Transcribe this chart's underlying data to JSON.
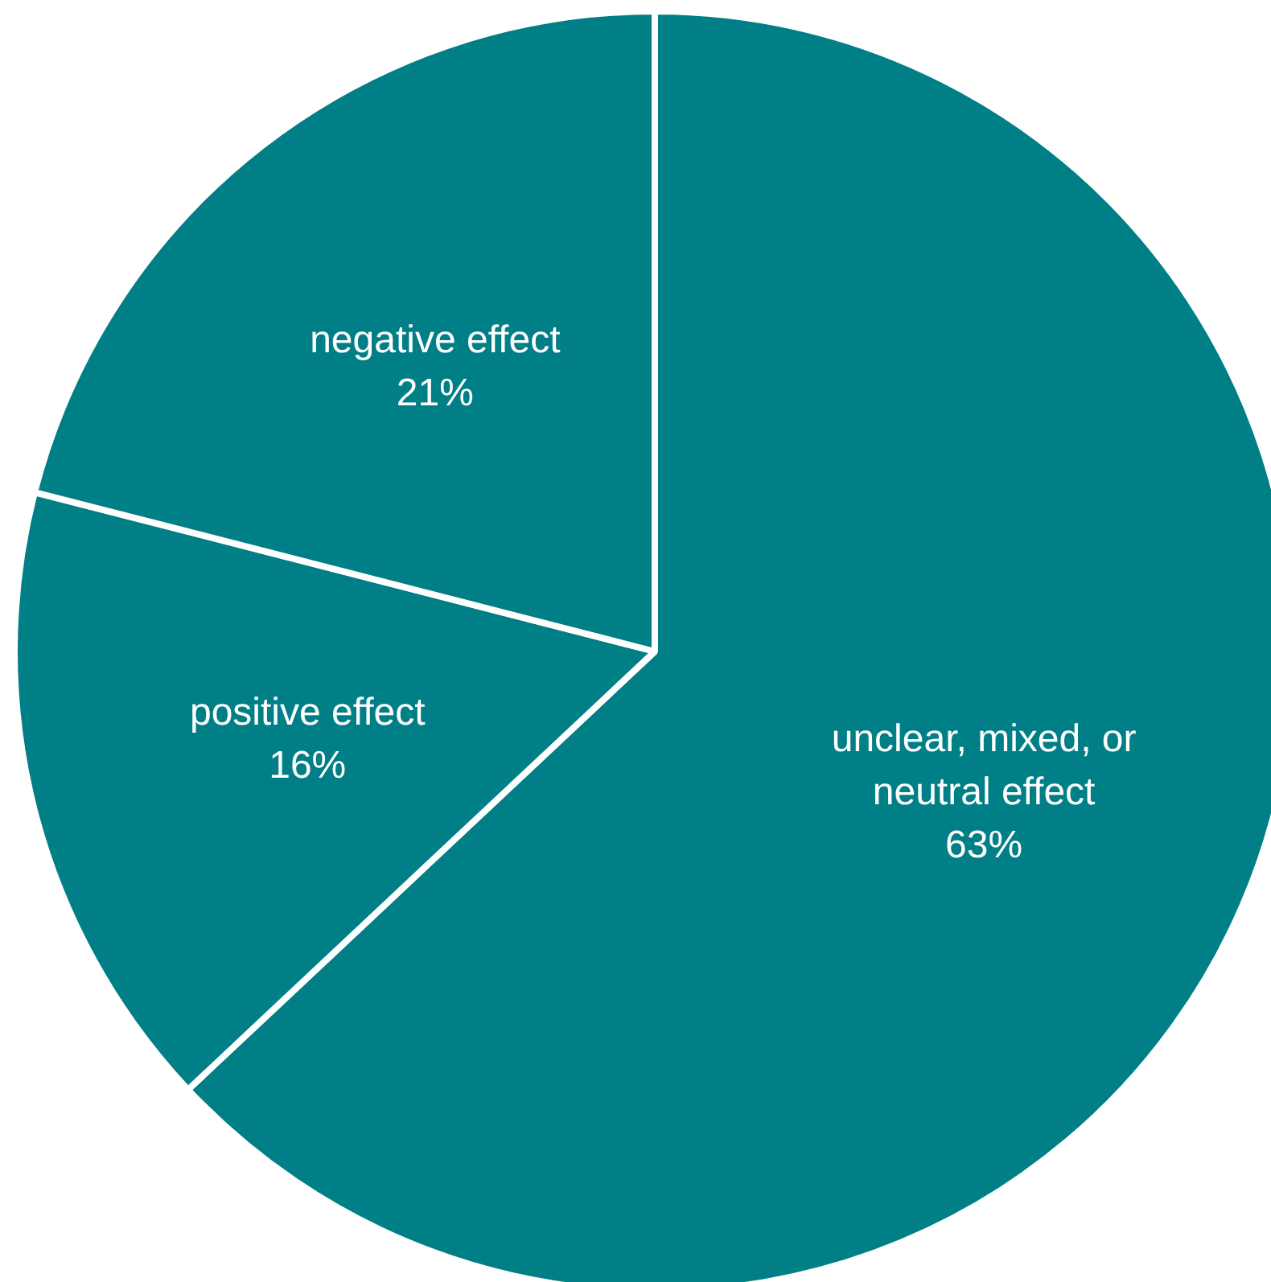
{
  "chart_data": {
    "type": "pie",
    "categories": [
      "unclear, mixed, or neutral effect",
      "positive effect",
      "negative effect"
    ],
    "values": [
      63,
      16,
      21
    ],
    "value_labels": [
      "63%",
      "16%",
      "21%"
    ],
    "colors": [
      "#007f87",
      "#007f87",
      "#007f87"
    ],
    "legend": false
  }
}
